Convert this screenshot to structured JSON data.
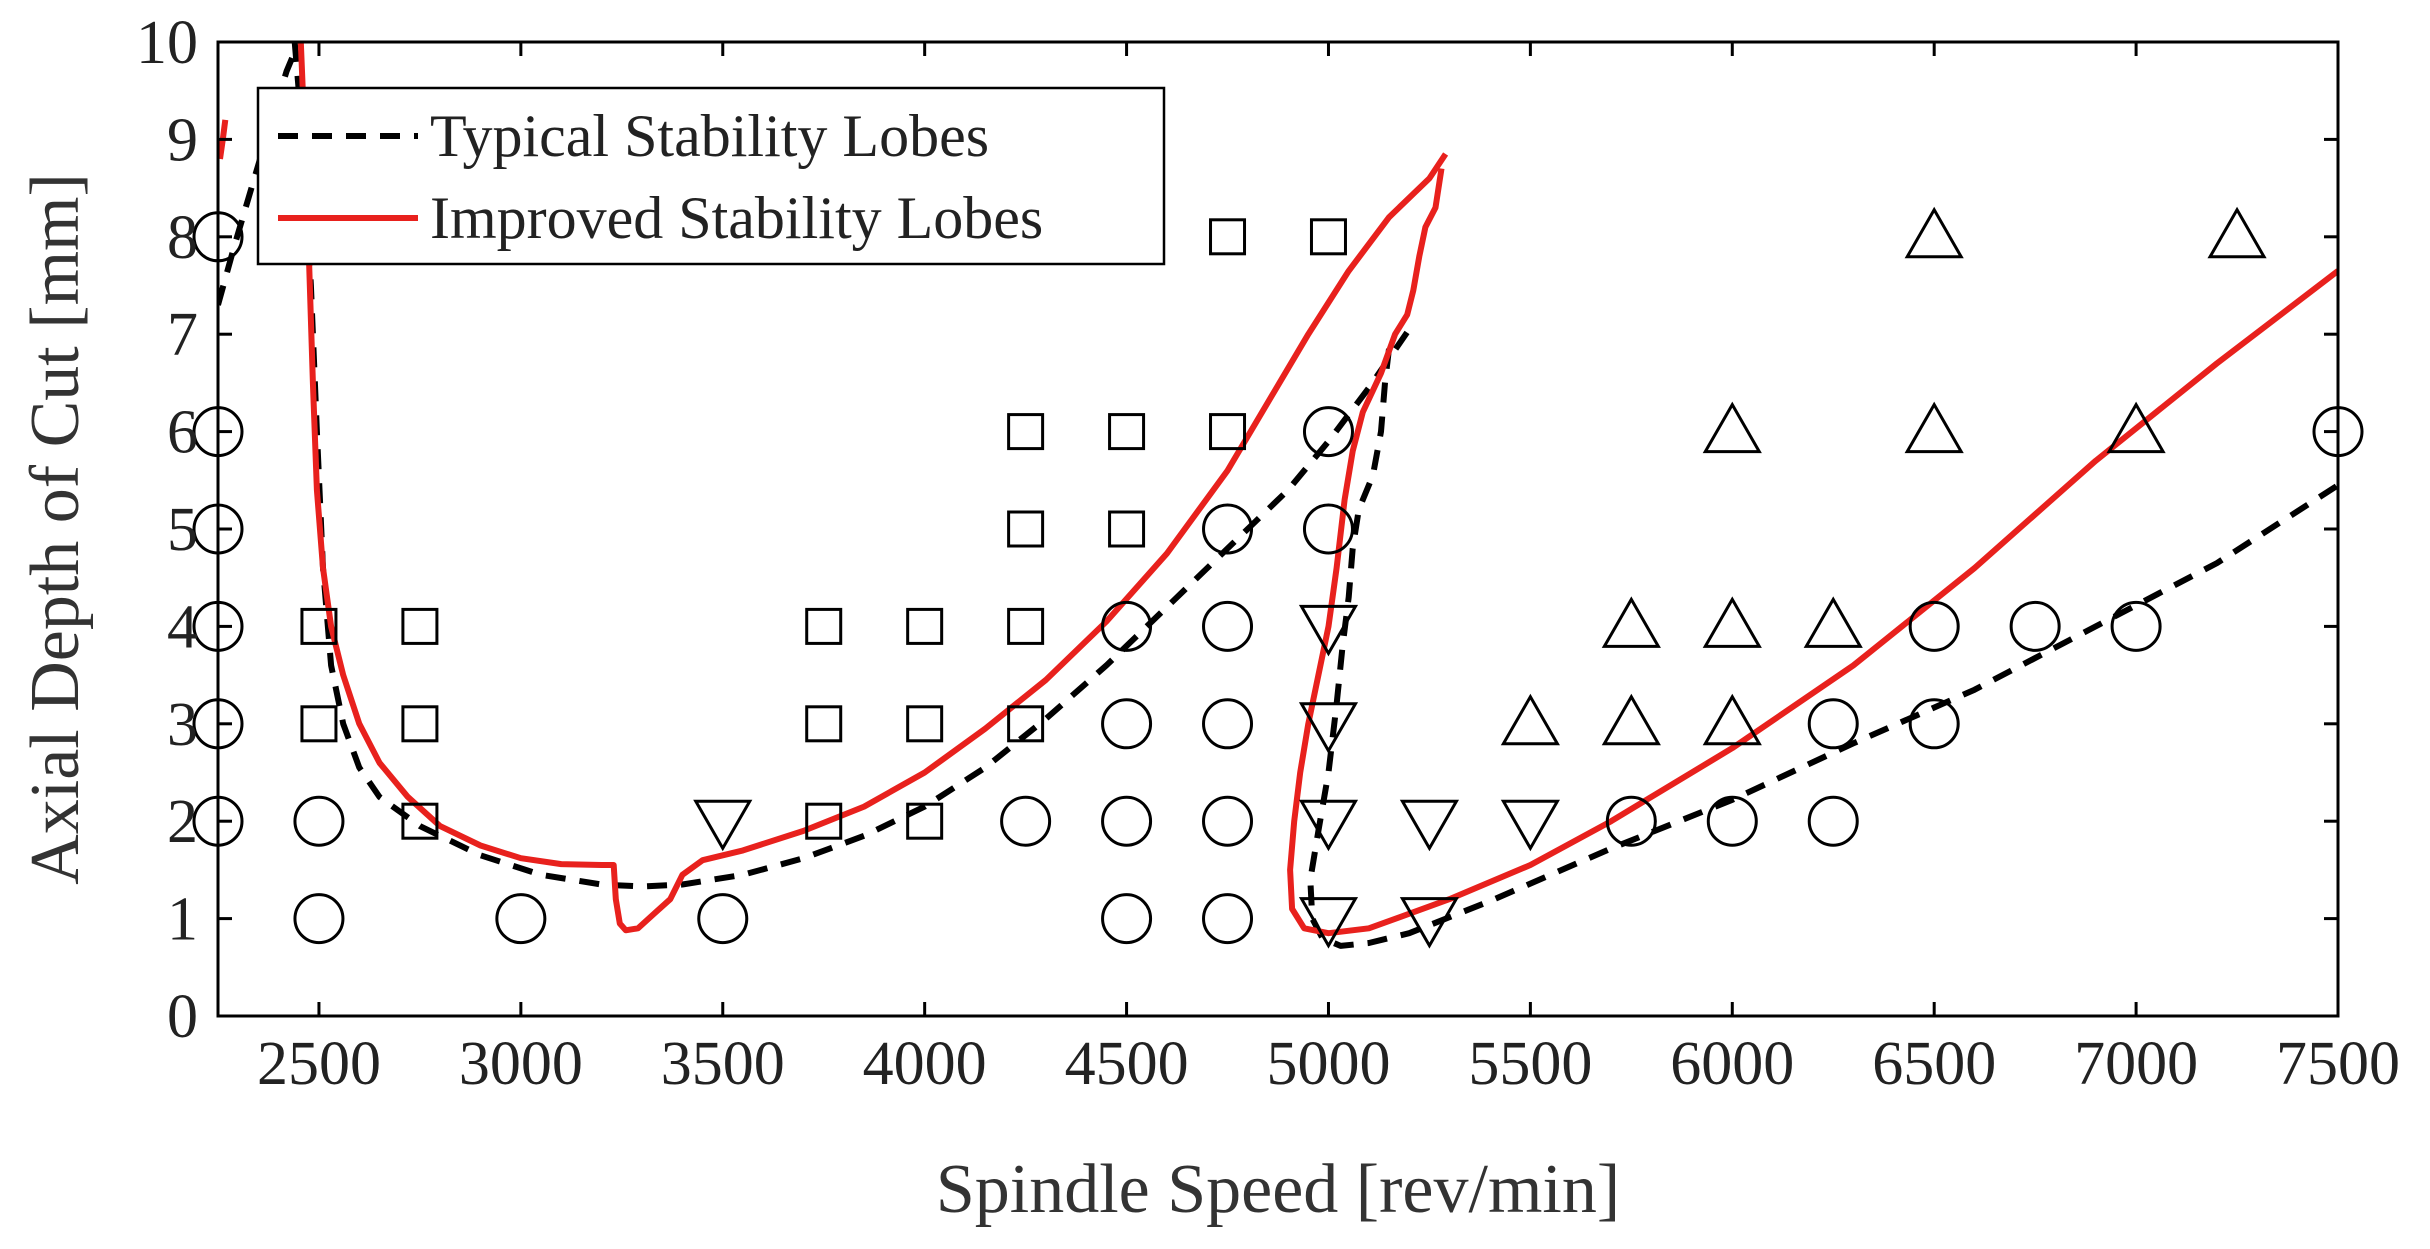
{
  "chart_data": {
    "type": "line",
    "title": "",
    "xlabel": "Spindle Speed [rev/min]",
    "ylabel": "Axial Depth of Cut [mm]",
    "xlim": [
      2250,
      7500
    ],
    "ylim": [
      0,
      10
    ],
    "xticks": [
      2500,
      3000,
      3500,
      4000,
      4500,
      5000,
      5500,
      6000,
      6500,
      7000,
      7500
    ],
    "yticks": [
      0,
      1,
      2,
      3,
      4,
      5,
      6,
      7,
      8,
      9,
      10
    ],
    "grid": false,
    "legend_position": "top-left",
    "series": [
      {
        "name": "Typical Stability Lobes",
        "style": "dashed",
        "color": "#000000",
        "segments": [
          [
            [
              2250,
              7.3
            ],
            [
              2290,
              7.9
            ],
            [
              2340,
              8.6
            ],
            [
              2390,
              9.3
            ],
            [
              2420,
              9.7
            ],
            [
              2440,
              9.9
            ]
          ],
          [
            [
              2440,
              10
            ],
            [
              2460,
              9.0
            ],
            [
              2480,
              7.5
            ],
            [
              2495,
              6.0
            ],
            [
              2510,
              4.6
            ],
            [
              2530,
              3.6
            ],
            [
              2560,
              3.0
            ],
            [
              2600,
              2.55
            ],
            [
              2650,
              2.25
            ],
            [
              2750,
              1.95
            ],
            [
              2900,
              1.65
            ],
            [
              3050,
              1.45
            ],
            [
              3200,
              1.35
            ],
            [
              3300,
              1.33
            ],
            [
              3400,
              1.35
            ],
            [
              3550,
              1.45
            ],
            [
              3700,
              1.62
            ],
            [
              3850,
              1.85
            ],
            [
              4000,
              2.15
            ],
            [
              4150,
              2.55
            ],
            [
              4300,
              3.05
            ],
            [
              4450,
              3.6
            ],
            [
              4600,
              4.2
            ],
            [
              4750,
              4.8
            ],
            [
              4900,
              5.4
            ],
            [
              5000,
              5.9
            ],
            [
              5100,
              6.45
            ],
            [
              5200,
              7.05
            ]
          ],
          [
            [
              5150,
              6.85
            ],
            [
              5140,
              6.5
            ],
            [
              5130,
              6.0
            ],
            [
              5110,
              5.55
            ],
            [
              5075,
              5.2
            ],
            [
              5060,
              4.8
            ],
            [
              5050,
              4.3
            ],
            [
              5035,
              3.8
            ],
            [
              5020,
              3.2
            ],
            [
              5000,
              2.5
            ],
            [
              4975,
              1.9
            ],
            [
              4955,
              1.4
            ],
            [
              4960,
              1.0
            ],
            [
              4985,
              0.8
            ],
            [
              5030,
              0.72
            ],
            [
              5100,
              0.75
            ],
            [
              5200,
              0.85
            ],
            [
              5400,
              1.18
            ],
            [
              5700,
              1.72
            ],
            [
              6000,
              2.22
            ],
            [
              6300,
              2.8
            ],
            [
              6600,
              3.35
            ],
            [
              6900,
              4.0
            ],
            [
              7200,
              4.65
            ],
            [
              7500,
              5.45
            ]
          ]
        ]
      },
      {
        "name": "Improved Stability Lobes",
        "style": "solid",
        "color": "#e8211d",
        "segments": [
          [
            [
              2255,
              8.8
            ],
            [
              2262,
              9.0
            ],
            [
              2268,
              9.2
            ]
          ],
          [
            [
              2455,
              10
            ],
            [
              2465,
              9.0
            ],
            [
              2475,
              7.8
            ],
            [
              2485,
              6.5
            ],
            [
              2495,
              5.4
            ],
            [
              2510,
              4.6
            ],
            [
              2530,
              4.0
            ],
            [
              2560,
              3.5
            ],
            [
              2600,
              3.0
            ],
            [
              2650,
              2.6
            ],
            [
              2720,
              2.25
            ],
            [
              2800,
              1.95
            ],
            [
              2900,
              1.75
            ],
            [
              3000,
              1.62
            ],
            [
              3100,
              1.56
            ],
            [
              3200,
              1.55
            ],
            [
              3230,
              1.55
            ],
            [
              3235,
              1.2
            ],
            [
              3245,
              0.95
            ],
            [
              3260,
              0.88
            ],
            [
              3290,
              0.9
            ],
            [
              3330,
              1.05
            ],
            [
              3370,
              1.2
            ],
            [
              3400,
              1.45
            ],
            [
              3450,
              1.6
            ],
            [
              3550,
              1.7
            ],
            [
              3700,
              1.9
            ],
            [
              3850,
              2.15
            ],
            [
              4000,
              2.5
            ],
            [
              4150,
              2.95
            ],
            [
              4300,
              3.45
            ],
            [
              4450,
              4.05
            ],
            [
              4600,
              4.75
            ],
            [
              4750,
              5.6
            ],
            [
              4850,
              6.3
            ],
            [
              4950,
              7.0
            ],
            [
              5050,
              7.65
            ],
            [
              5150,
              8.2
            ],
            [
              5250,
              8.6
            ],
            [
              5290,
              8.85
            ]
          ],
          [
            [
              5280,
              8.7
            ],
            [
              5265,
              8.3
            ],
            [
              5240,
              8.1
            ],
            [
              5225,
              7.8
            ],
            [
              5210,
              7.45
            ],
            [
              5195,
              7.2
            ],
            [
              5165,
              7.0
            ],
            [
              5130,
              6.6
            ],
            [
              5085,
              6.2
            ],
            [
              5060,
              5.8
            ],
            [
              5040,
              5.3
            ],
            [
              5020,
              4.6
            ],
            [
              5000,
              4.0
            ],
            [
              4975,
              3.5
            ],
            [
              4950,
              3.0
            ],
            [
              4930,
              2.5
            ],
            [
              4915,
              2.0
            ],
            [
              4905,
              1.5
            ],
            [
              4910,
              1.1
            ],
            [
              4940,
              0.9
            ],
            [
              5000,
              0.85
            ],
            [
              5100,
              0.9
            ],
            [
              5300,
              1.2
            ],
            [
              5500,
              1.55
            ],
            [
              5700,
              2.0
            ],
            [
              6000,
              2.75
            ],
            [
              6300,
              3.6
            ],
            [
              6600,
              4.6
            ],
            [
              6900,
              5.7
            ],
            [
              7200,
              6.7
            ],
            [
              7500,
              7.65
            ]
          ]
        ]
      }
    ],
    "markers": {
      "circle": [
        [
          2250,
          8
        ],
        [
          2250,
          6
        ],
        [
          2250,
          5
        ],
        [
          2250,
          4
        ],
        [
          2250,
          3
        ],
        [
          2250,
          2
        ],
        [
          2500,
          2
        ],
        [
          2500,
          1
        ],
        [
          3000,
          1
        ],
        [
          3500,
          1
        ],
        [
          4250,
          2
        ],
        [
          4500,
          4
        ],
        [
          4500,
          3
        ],
        [
          4500,
          2
        ],
        [
          4500,
          1
        ],
        [
          4750,
          5
        ],
        [
          4750,
          4
        ],
        [
          4750,
          3
        ],
        [
          4750,
          2
        ],
        [
          4750,
          1
        ],
        [
          5000,
          6
        ],
        [
          5000,
          5
        ],
        [
          5750,
          2
        ],
        [
          6000,
          2
        ],
        [
          6250,
          3
        ],
        [
          6250,
          2
        ],
        [
          6500,
          4
        ],
        [
          6500,
          3
        ],
        [
          6750,
          4
        ],
        [
          7000,
          4
        ],
        [
          7500,
          6
        ]
      ],
      "square": [
        [
          2500,
          4
        ],
        [
          2500,
          3
        ],
        [
          2750,
          4
        ],
        [
          2750,
          3
        ],
        [
          2750,
          2
        ],
        [
          3750,
          4
        ],
        [
          3750,
          3
        ],
        [
          3750,
          2
        ],
        [
          4000,
          4
        ],
        [
          4000,
          3
        ],
        [
          4000,
          2
        ],
        [
          4250,
          6
        ],
        [
          4250,
          5
        ],
        [
          4250,
          4
        ],
        [
          4250,
          3
        ],
        [
          4500,
          6
        ],
        [
          4500,
          5
        ],
        [
          4750,
          8
        ],
        [
          4750,
          6
        ],
        [
          5000,
          8
        ]
      ],
      "triangle_up": [
        [
          5500,
          3
        ],
        [
          5750,
          4
        ],
        [
          5750,
          3
        ],
        [
          6000,
          6
        ],
        [
          6000,
          4
        ],
        [
          6000,
          3
        ],
        [
          6250,
          4
        ],
        [
          6500,
          8
        ],
        [
          6500,
          6
        ],
        [
          7000,
          6
        ],
        [
          7250,
          8
        ]
      ],
      "triangle_down": [
        [
          3500,
          2
        ],
        [
          5000,
          4
        ],
        [
          5000,
          3
        ],
        [
          5000,
          2
        ],
        [
          5000,
          1
        ],
        [
          5250,
          2
        ],
        [
          5250,
          1
        ],
        [
          5500,
          2
        ]
      ]
    }
  }
}
